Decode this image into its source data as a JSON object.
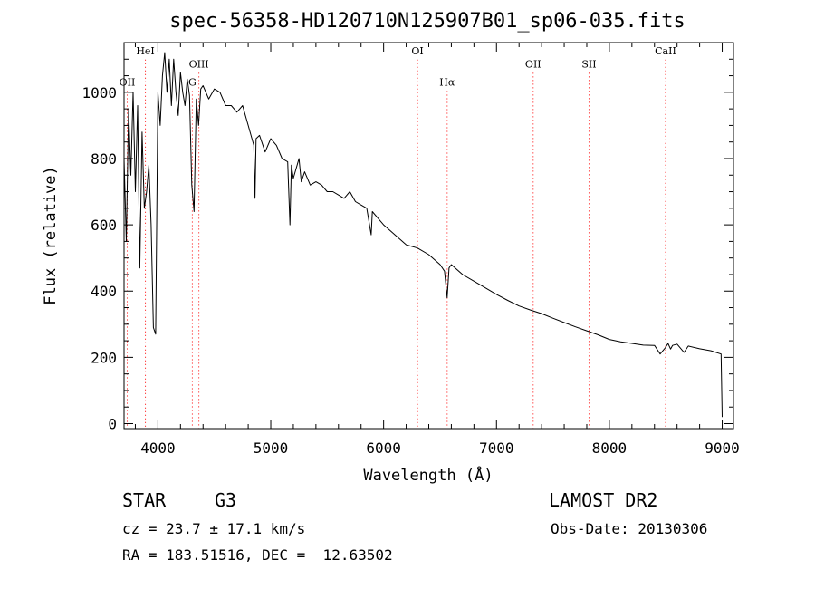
{
  "title": "spec-56358-HD120710N125907B01_sp06-035.fits",
  "info": {
    "class": "STAR",
    "subclass": "G3",
    "redshift": "cz = 23.7 ± 17.1 km/s",
    "coords": "RA = 183.51516, DEC =  12.63502",
    "survey": "LAMOST DR2",
    "obs_date": "Obs-Date: 20130306"
  },
  "chart_data": {
    "type": "line",
    "title": "spec-56358-HD120710N125907B01_sp06-035.fits",
    "xlabel": "Wavelength (Å)",
    "ylabel": "Flux (relative)",
    "xlim": [
      3700,
      9100
    ],
    "ylim": [
      -15,
      1150
    ],
    "xticks": [
      4000,
      5000,
      6000,
      7000,
      8000,
      9000
    ],
    "yticks": [
      0,
      200,
      400,
      600,
      800,
      1000
    ],
    "grid": false,
    "line_color": "#000000",
    "marker_color": "#ff0000",
    "lines": [
      {
        "label": "OII",
        "wave": 3728,
        "label_y": 1020
      },
      {
        "label": "HeI",
        "wave": 3889,
        "label_y": 1115
      },
      {
        "label": "G",
        "wave": 4305,
        "label_y": 1020
      },
      {
        "label": "OIII",
        "wave": 4363,
        "label_y": 1075
      },
      {
        "label": "OI",
        "wave": 6300,
        "label_y": 1115
      },
      {
        "label": "Hα",
        "wave": 6563,
        "label_y": 1020
      },
      {
        "label": "OII",
        "wave": 7325,
        "label_y": 1075
      },
      {
        "label": "SII",
        "wave": 7820,
        "label_y": 1075
      },
      {
        "label": "CaII",
        "wave": 8498,
        "label_y": 1115
      }
    ],
    "series": [
      {
        "x": [
          3700,
          3720,
          3740,
          3760,
          3780,
          3800,
          3820,
          3840,
          3860,
          3880,
          3900,
          3920,
          3940,
          3960,
          3980,
          4000,
          4020,
          4040,
          4060,
          4080,
          4100,
          4120,
          4140,
          4160,
          4180,
          4200,
          4220,
          4240,
          4260,
          4280,
          4300,
          4320,
          4340,
          4360,
          4380,
          4400,
          4450,
          4500,
          4550,
          4600,
          4650,
          4700,
          4750,
          4800,
          4850,
          4860,
          4870,
          4900,
          4950,
          5000,
          5050,
          5100,
          5150,
          5170,
          5183,
          5200,
          5250,
          5270,
          5300,
          5350,
          5400,
          5450,
          5500,
          5550,
          5600,
          5650,
          5700,
          5750,
          5800,
          5850,
          5890,
          5900,
          5950,
          6000,
          6100,
          6200,
          6300,
          6400,
          6500,
          6540,
          6563,
          6580,
          6600,
          6700,
          6800,
          6900,
          7000,
          7100,
          7200,
          7300,
          7400,
          7500,
          7600,
          7700,
          7800,
          7900,
          8000,
          8100,
          8200,
          8300,
          8400,
          8450,
          8498,
          8520,
          8542,
          8560,
          8600,
          8662,
          8700,
          8800,
          8900,
          8990,
          9000
        ],
        "y": [
          800,
          550,
          950,
          750,
          1000,
          700,
          960,
          470,
          880,
          650,
          700,
          780,
          600,
          290,
          270,
          1000,
          900,
          1050,
          1120,
          1000,
          1100,
          960,
          1100,
          1000,
          930,
          1060,
          1000,
          960,
          1040,
          990,
          720,
          640,
          980,
          900,
          1010,
          1020,
          980,
          1010,
          1000,
          960,
          960,
          940,
          960,
          900,
          840,
          680,
          860,
          870,
          820,
          860,
          840,
          800,
          790,
          600,
          780,
          740,
          800,
          730,
          760,
          720,
          730,
          720,
          700,
          700,
          690,
          680,
          700,
          670,
          660,
          650,
          570,
          640,
          620,
          600,
          570,
          540,
          530,
          510,
          480,
          460,
          380,
          470,
          480,
          450,
          430,
          410,
          390,
          372,
          355,
          343,
          332,
          318,
          305,
          292,
          280,
          268,
          254,
          247,
          242,
          237,
          236,
          210,
          230,
          242,
          225,
          236,
          240,
          215,
          234,
          226,
          220,
          210,
          20
        ]
      }
    ]
  }
}
